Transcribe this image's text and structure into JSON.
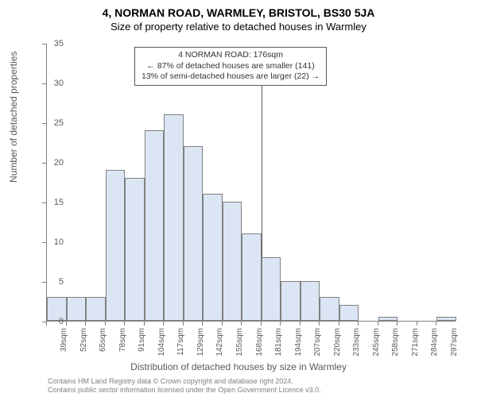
{
  "title": "4, NORMAN ROAD, WARMLEY, BRISTOL, BS30 5JA",
  "subtitle": "Size of property relative to detached houses in Warmley",
  "chart": {
    "type": "histogram",
    "ylabel": "Number of detached properties",
    "xlabel": "Distribution of detached houses by size in Warmley",
    "ylim": [
      0,
      35
    ],
    "ytick_step": 5,
    "categories": [
      "39sqm",
      "52sqm",
      "65sqm",
      "78sqm",
      "91sqm",
      "104sqm",
      "117sqm",
      "129sqm",
      "142sqm",
      "155sqm",
      "168sqm",
      "181sqm",
      "194sqm",
      "207sqm",
      "220sqm",
      "233sqm",
      "245sqm",
      "258sqm",
      "271sqm",
      "284sqm",
      "297sqm"
    ],
    "values": [
      3,
      3,
      3,
      19,
      18,
      24,
      26,
      22,
      16,
      15,
      11,
      8,
      5,
      5,
      3,
      2,
      0,
      0.5,
      0,
      0,
      0.5
    ],
    "bar_color": "#dbe5f4",
    "bar_border_color": "#808080",
    "axis_color": "#808080",
    "background_color": "#ffffff",
    "label_fontsize": 12,
    "tick_fontsize": 11,
    "marker_index": 11,
    "marker_color": "#595959"
  },
  "annotation": {
    "line1": "4 NORMAN ROAD: 176sqm",
    "line2": "← 87% of detached houses are smaller (141)",
    "line3": "13% of semi-detached houses are larger (22) →"
  },
  "footer": {
    "line1": "Contains HM Land Registry data © Crown copyright and database right 2024.",
    "line2": "Contains public sector information licensed under the Open Government Licence v3.0."
  }
}
